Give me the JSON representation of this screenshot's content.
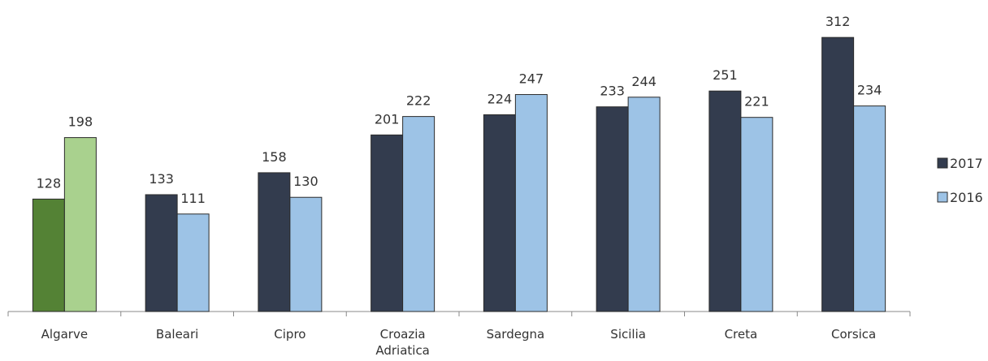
{
  "chart_data": {
    "type": "bar",
    "categories": [
      "Algarve",
      "Baleari",
      "Cipro",
      "Croazia Adriatica",
      "Sardegna",
      "Sicilia",
      "Creta",
      "Corsica"
    ],
    "series": [
      {
        "name": "2017",
        "color": "#333c4e",
        "colors": [
          "#548235",
          "#333c4e",
          "#333c4e",
          "#333c4e",
          "#333c4e",
          "#333c4e",
          "#333c4e",
          "#333c4e"
        ],
        "values": [
          128,
          133,
          158,
          201,
          224,
          233,
          251,
          312
        ]
      },
      {
        "name": "2016",
        "color": "#9dc3e6",
        "colors": [
          "#a9d18e",
          "#9dc3e6",
          "#9dc3e6",
          "#9dc3e6",
          "#9dc3e6",
          "#9dc3e6",
          "#9dc3e6",
          "#9dc3e6"
        ],
        "values": [
          198,
          111,
          130,
          222,
          247,
          244,
          221,
          234
        ]
      }
    ],
    "ylim": [
      0,
      350
    ],
    "grid": false,
    "legend": "right",
    "data_labels": true
  }
}
